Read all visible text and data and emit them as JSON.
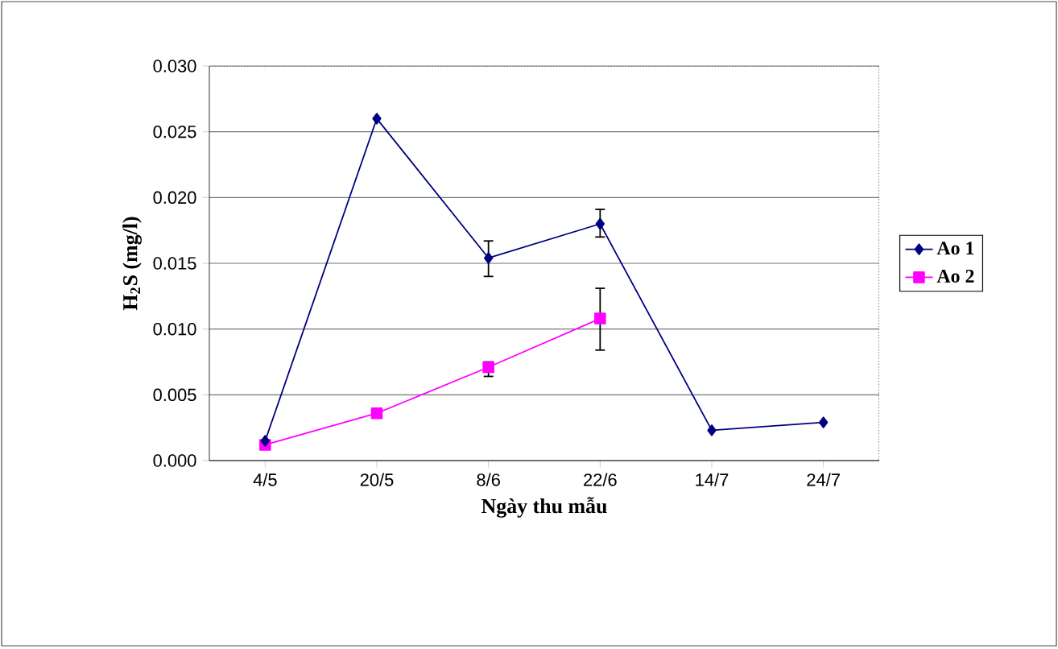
{
  "chart_data": {
    "type": "line",
    "xlabel": "Ngày thu mẫu",
    "ylabel": "H$_{2}$S (mg/l)",
    "categories": [
      "4/5",
      "20/5",
      "8/6",
      "22/6",
      "14/7",
      "24/7"
    ],
    "series": [
      {
        "name": "Ao 1",
        "color": "#000080",
        "marker": "diamond",
        "values": [
          0.0015,
          0.026,
          0.0154,
          0.018,
          0.0023,
          0.0029
        ],
        "errors": [
          null,
          null,
          [
            0.014,
            0.0167
          ],
          [
            0.017,
            0.0191
          ],
          null,
          null
        ]
      },
      {
        "name": "Ao 2",
        "color": "#ff00ff",
        "marker": "square",
        "values": [
          0.0012,
          0.0036,
          0.0071,
          0.0108,
          null,
          null
        ],
        "errors": [
          null,
          null,
          [
            0.0064,
            0.0075
          ],
          [
            0.0084,
            0.0131
          ],
          null,
          null
        ]
      }
    ],
    "ylim": [
      0,
      0.03
    ],
    "yticks": [
      {
        "value": 0,
        "label": "0.000"
      },
      {
        "value": 0.005,
        "label": "0.005"
      },
      {
        "value": 0.01,
        "label": "0.010"
      },
      {
        "value": 0.015,
        "label": "0.015"
      },
      {
        "value": 0.02,
        "label": "0.020"
      },
      {
        "value": 0.025,
        "label": "0.025"
      },
      {
        "value": 0.03,
        "label": "0.030"
      }
    ],
    "grid": "y",
    "legend": "right"
  }
}
